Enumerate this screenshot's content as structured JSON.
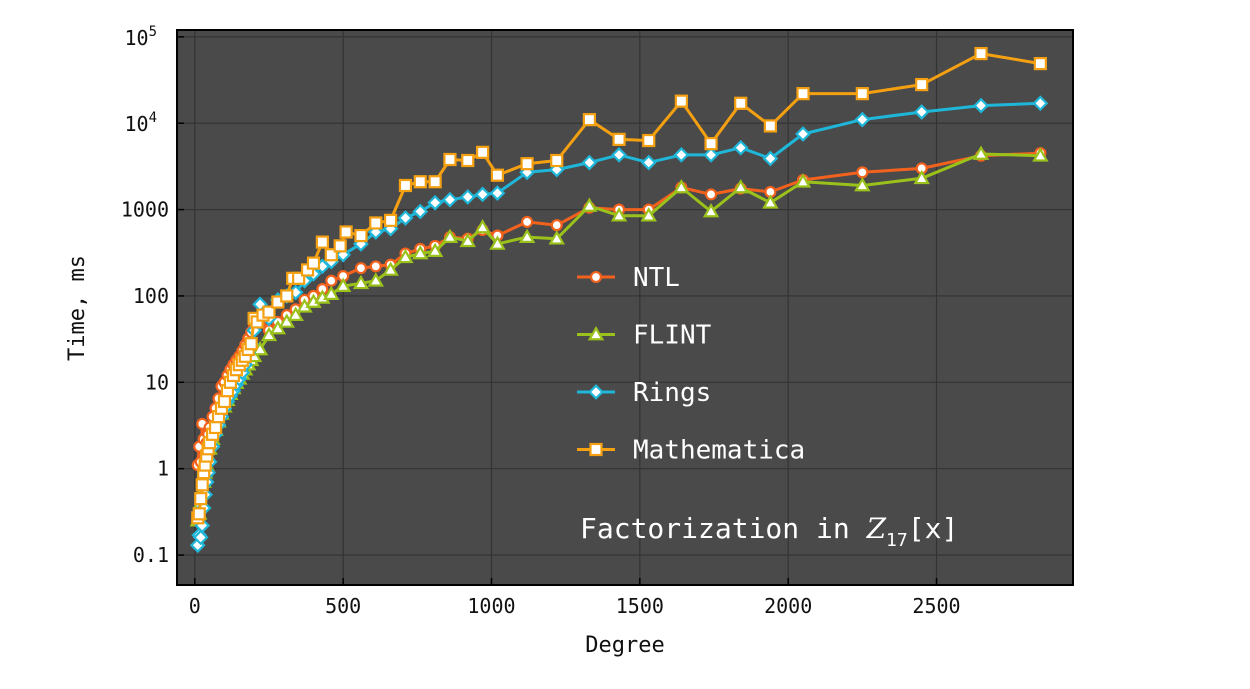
{
  "chart_data": {
    "type": "line",
    "xlabel": "Degree",
    "ylabel": "Time, ms",
    "yscale": "log",
    "xlim": [
      -60,
      2960
    ],
    "ylim": [
      0.045,
      120000
    ],
    "grid": true,
    "legend_position": "center-right",
    "x_ticks": [
      {
        "value": 0,
        "label": "0"
      },
      {
        "value": 500,
        "label": "500"
      },
      {
        "value": 1000,
        "label": "1000"
      },
      {
        "value": 1500,
        "label": "1500"
      },
      {
        "value": 2000,
        "label": "2000"
      },
      {
        "value": 2500,
        "label": "2500"
      }
    ],
    "y_ticks": [
      {
        "value": 0.1,
        "label": "0.1"
      },
      {
        "value": 1,
        "label": "1"
      },
      {
        "value": 10,
        "label": "10"
      },
      {
        "value": 100,
        "label": "100"
      },
      {
        "value": 1000,
        "label": "1000"
      },
      {
        "value": 10000,
        "label": "10",
        "sup": "4"
      },
      {
        "value": 100000,
        "label": "10",
        "sup": "5"
      }
    ],
    "annotation": {
      "prefix": "Factorization in ",
      "var": "Z",
      "sub": "17",
      "suffix": "[x]"
    },
    "colors": {
      "plot_background": "#4a4a4a",
      "grid": "#333333",
      "NTL": "#f2621d",
      "FLINT": "#9ac21a",
      "Rings": "#1fb7d9",
      "Mathematica": "#f5a011"
    },
    "series": [
      {
        "name": "NTL",
        "marker": "circle",
        "x": [
          10,
          15,
          20,
          25,
          30,
          35,
          40,
          45,
          50,
          60,
          70,
          80,
          90,
          100,
          110,
          120,
          130,
          140,
          150,
          160,
          170,
          180,
          190,
          200,
          220,
          250,
          280,
          310,
          340,
          370,
          400,
          430,
          460,
          500,
          560,
          610,
          660,
          710,
          760,
          810,
          860,
          920,
          970,
          1020,
          1120,
          1220,
          1330,
          1430,
          1530,
          1640,
          1740,
          1840,
          1940,
          2050,
          2250,
          2450,
          2650,
          2850
        ],
        "values": [
          1.1,
          1.8,
          1.2,
          3.3,
          2.2,
          1.5,
          2.0,
          2.5,
          3.0,
          4.0,
          5.0,
          6.5,
          9.0,
          10,
          12,
          14,
          16,
          18,
          20,
          23,
          27,
          32,
          38,
          45,
          55,
          40,
          50,
          60,
          70,
          90,
          100,
          120,
          150,
          170,
          210,
          220,
          230,
          310,
          350,
          380,
          480,
          460,
          580,
          500,
          720,
          660,
          1050,
          1000,
          1000,
          1800,
          1500,
          1750,
          1600,
          2200,
          2700,
          3000,
          4200,
          4500
        ]
      },
      {
        "name": "FLINT",
        "marker": "triangle",
        "x": [
          10,
          15,
          20,
          25,
          30,
          35,
          40,
          45,
          50,
          60,
          70,
          80,
          90,
          100,
          110,
          120,
          130,
          140,
          150,
          160,
          170,
          180,
          190,
          200,
          220,
          250,
          280,
          310,
          340,
          370,
          400,
          430,
          460,
          500,
          560,
          610,
          660,
          710,
          760,
          810,
          860,
          920,
          970,
          1020,
          1120,
          1220,
          1330,
          1430,
          1530,
          1640,
          1740,
          1840,
          1940,
          2050,
          2250,
          2450,
          2650,
          2850
        ],
        "values": [
          0.25,
          0.3,
          0.4,
          0.55,
          0.7,
          0.9,
          1.1,
          1.4,
          1.7,
          2.2,
          2.8,
          3.5,
          4.3,
          5.2,
          6.2,
          7.3,
          8.5,
          9.8,
          11,
          12.5,
          14,
          16,
          18,
          20,
          24,
          35,
          42,
          50,
          60,
          75,
          85,
          95,
          105,
          130,
          140,
          150,
          200,
          280,
          310,
          330,
          480,
          430,
          620,
          400,
          480,
          460,
          1100,
          850,
          850,
          1800,
          950,
          1800,
          1200,
          2100,
          1900,
          2300,
          4400,
          4200
        ]
      },
      {
        "name": "Rings",
        "marker": "diamond",
        "x": [
          10,
          15,
          20,
          25,
          30,
          35,
          40,
          45,
          50,
          60,
          70,
          80,
          90,
          100,
          110,
          120,
          130,
          140,
          150,
          160,
          170,
          180,
          190,
          200,
          220,
          250,
          280,
          310,
          340,
          370,
          400,
          430,
          460,
          500,
          560,
          610,
          660,
          710,
          760,
          810,
          860,
          920,
          970,
          1020,
          1120,
          1220,
          1330,
          1430,
          1530,
          1640,
          1740,
          1840,
          1940,
          2050,
          2250,
          2450,
          2650,
          2850
        ],
        "values": [
          0.13,
          0.17,
          0.16,
          0.22,
          0.35,
          0.5,
          0.7,
          0.9,
          1.2,
          1.8,
          2.5,
          3.2,
          4.0,
          5.0,
          6.0,
          7.0,
          8.0,
          9.5,
          11,
          13,
          16,
          22,
          28,
          40,
          80,
          55,
          90,
          100,
          110,
          150,
          180,
          220,
          250,
          300,
          400,
          550,
          600,
          800,
          950,
          1200,
          1300,
          1400,
          1500,
          1550,
          2700,
          2900,
          3500,
          4300,
          3500,
          4300,
          4300,
          5200,
          3900,
          7500,
          11000,
          13500,
          16000,
          17000
        ]
      },
      {
        "name": "Mathematica",
        "marker": "square",
        "x": [
          10,
          15,
          20,
          25,
          30,
          35,
          40,
          45,
          50,
          60,
          70,
          80,
          90,
          100,
          110,
          120,
          130,
          140,
          150,
          160,
          170,
          180,
          190,
          200,
          210,
          230,
          250,
          280,
          310,
          330,
          350,
          380,
          400,
          430,
          460,
          490,
          510,
          560,
          610,
          660,
          710,
          760,
          810,
          860,
          920,
          970,
          1020,
          1120,
          1220,
          1330,
          1430,
          1530,
          1640,
          1740,
          1840,
          1940,
          2050,
          2250,
          2450,
          2650,
          2850
        ],
        "values": [
          0.27,
          0.3,
          0.45,
          0.65,
          0.9,
          1.1,
          1.4,
          1.7,
          2.0,
          2.5,
          3.0,
          4.0,
          5.0,
          6.0,
          8.0,
          10,
          12,
          14,
          16,
          18,
          20,
          24,
          28,
          55,
          50,
          60,
          65,
          85,
          100,
          160,
          160,
          200,
          240,
          420,
          300,
          380,
          550,
          500,
          700,
          750,
          1900,
          2100,
          2100,
          3800,
          3700,
          4600,
          2500,
          3400,
          3700,
          11000,
          6500,
          6300,
          18000,
          5800,
          17000,
          9300,
          22000,
          22000,
          28000,
          64000,
          49000
        ]
      }
    ]
  }
}
